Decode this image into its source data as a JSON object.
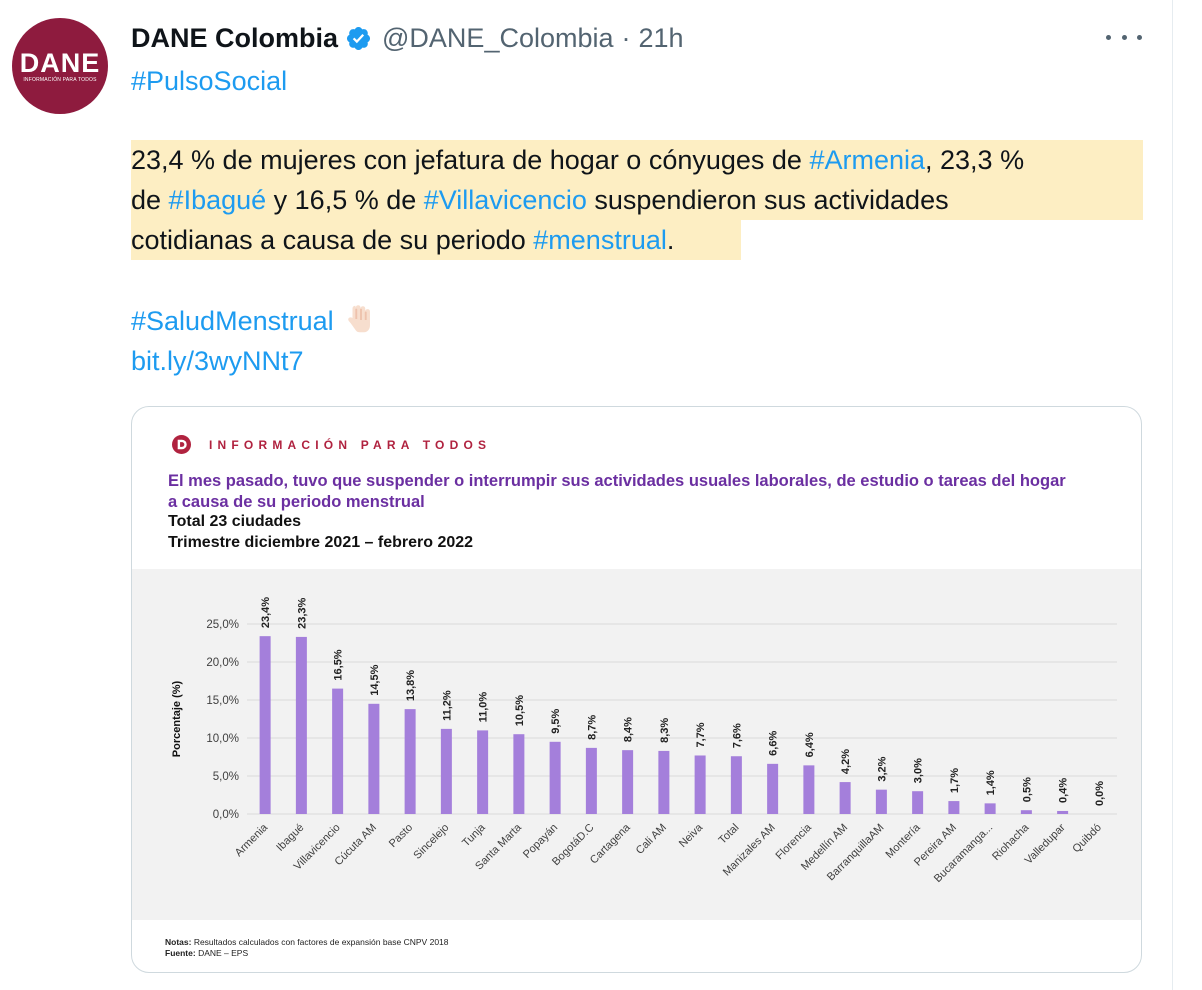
{
  "tweet": {
    "author_name": "DANE Colombia",
    "handle": "@DANE_Colombia",
    "separator": "·",
    "time": "21h",
    "avatar_logo": "DANE",
    "avatar_subtitle": "INFORMACIÓN PARA TODOS",
    "hashtag_top": "#PulsoSocial",
    "body": {
      "l1_a": "23,4 % de mujeres con jefatura de hogar o cónyuges de ",
      "l1_tag": "#Armenia",
      "l1_b": ", 23,3 %",
      "l2_a": "de ",
      "l2_tag1": "#Ibagué",
      "l2_b": " y 16,5 % de ",
      "l2_tag2": "#Villavicencio",
      "l2_c": " suspendieron sus actividades",
      "l3_a": "cotidianas a causa de su periodo ",
      "l3_tag": "#menstrual",
      "l3_b": "."
    },
    "hashtag_salud": "#SaludMenstrual",
    "link": "bit.ly/3wyNNt7",
    "icons": {
      "verified": "verified-badge-icon",
      "more": "more-options-icon",
      "emoji": "backhand-index-pointing-down-icon"
    }
  },
  "card": {
    "brand": "INFORMACIÓN PARA TODOS",
    "title": "El mes pasado, tuvo que suspender o interrumpir sus actividades usuales laborales, de estudio o tareas del hogar a causa de su periodo menstrual",
    "subtitle1": "Total 23 ciudades",
    "subtitle2": "Trimestre diciembre 2021 – febrero 2022",
    "notes_label": "Notas:",
    "notes_text": " Resultados calculados con factores de expansión base CNPV 2018",
    "source_label": "Fuente:",
    "source_text": " DANE – EPS"
  },
  "chart_data": {
    "type": "bar",
    "categories": [
      "Armenia",
      "Ibagué",
      "Villavicencio",
      "Cúcuta AM",
      "Pasto",
      "Sincelejo",
      "Tunja",
      "Santa Marta",
      "Popayán",
      "BogotáD.C",
      "Cartagena",
      "Cali AM",
      "Neiva",
      "Total",
      "Manizales AM",
      "Florencia",
      "Medellín AM",
      "BarranquillaAM",
      "Montería",
      "Pereira AM",
      "Bucaramanga...",
      "Riohacha",
      "Valledupar",
      "Quibdó"
    ],
    "values": [
      23.4,
      23.3,
      16.5,
      14.5,
      13.8,
      11.2,
      11.0,
      10.5,
      9.5,
      8.7,
      8.4,
      8.3,
      7.7,
      7.6,
      6.6,
      6.4,
      4.2,
      3.2,
      3.0,
      1.7,
      1.4,
      0.5,
      0.4,
      0.0
    ],
    "data_labels": [
      "23,4%",
      "23,3%",
      "16,5%",
      "14,5%",
      "13,8%",
      "11,2%",
      "11,0%",
      "10,5%",
      "9,5%",
      "8,7%",
      "8,4%",
      "8,3%",
      "7,7%",
      "7,6%",
      "6,6%",
      "6,4%",
      "4,2%",
      "3,2%",
      "3,0%",
      "1,7%",
      "1,4%",
      "0,5%",
      "0,4%",
      "0,0%"
    ],
    "ylabel": "Porcentaje (%)",
    "ylim": [
      0,
      25
    ],
    "yticks": [
      0,
      5,
      10,
      15,
      20,
      25
    ],
    "ytick_labels": [
      "0,0%",
      "5,0%",
      "10,0%",
      "15,0%",
      "20,0%",
      "25,0%"
    ],
    "grid": true,
    "bar_color": "#a47fdb"
  }
}
